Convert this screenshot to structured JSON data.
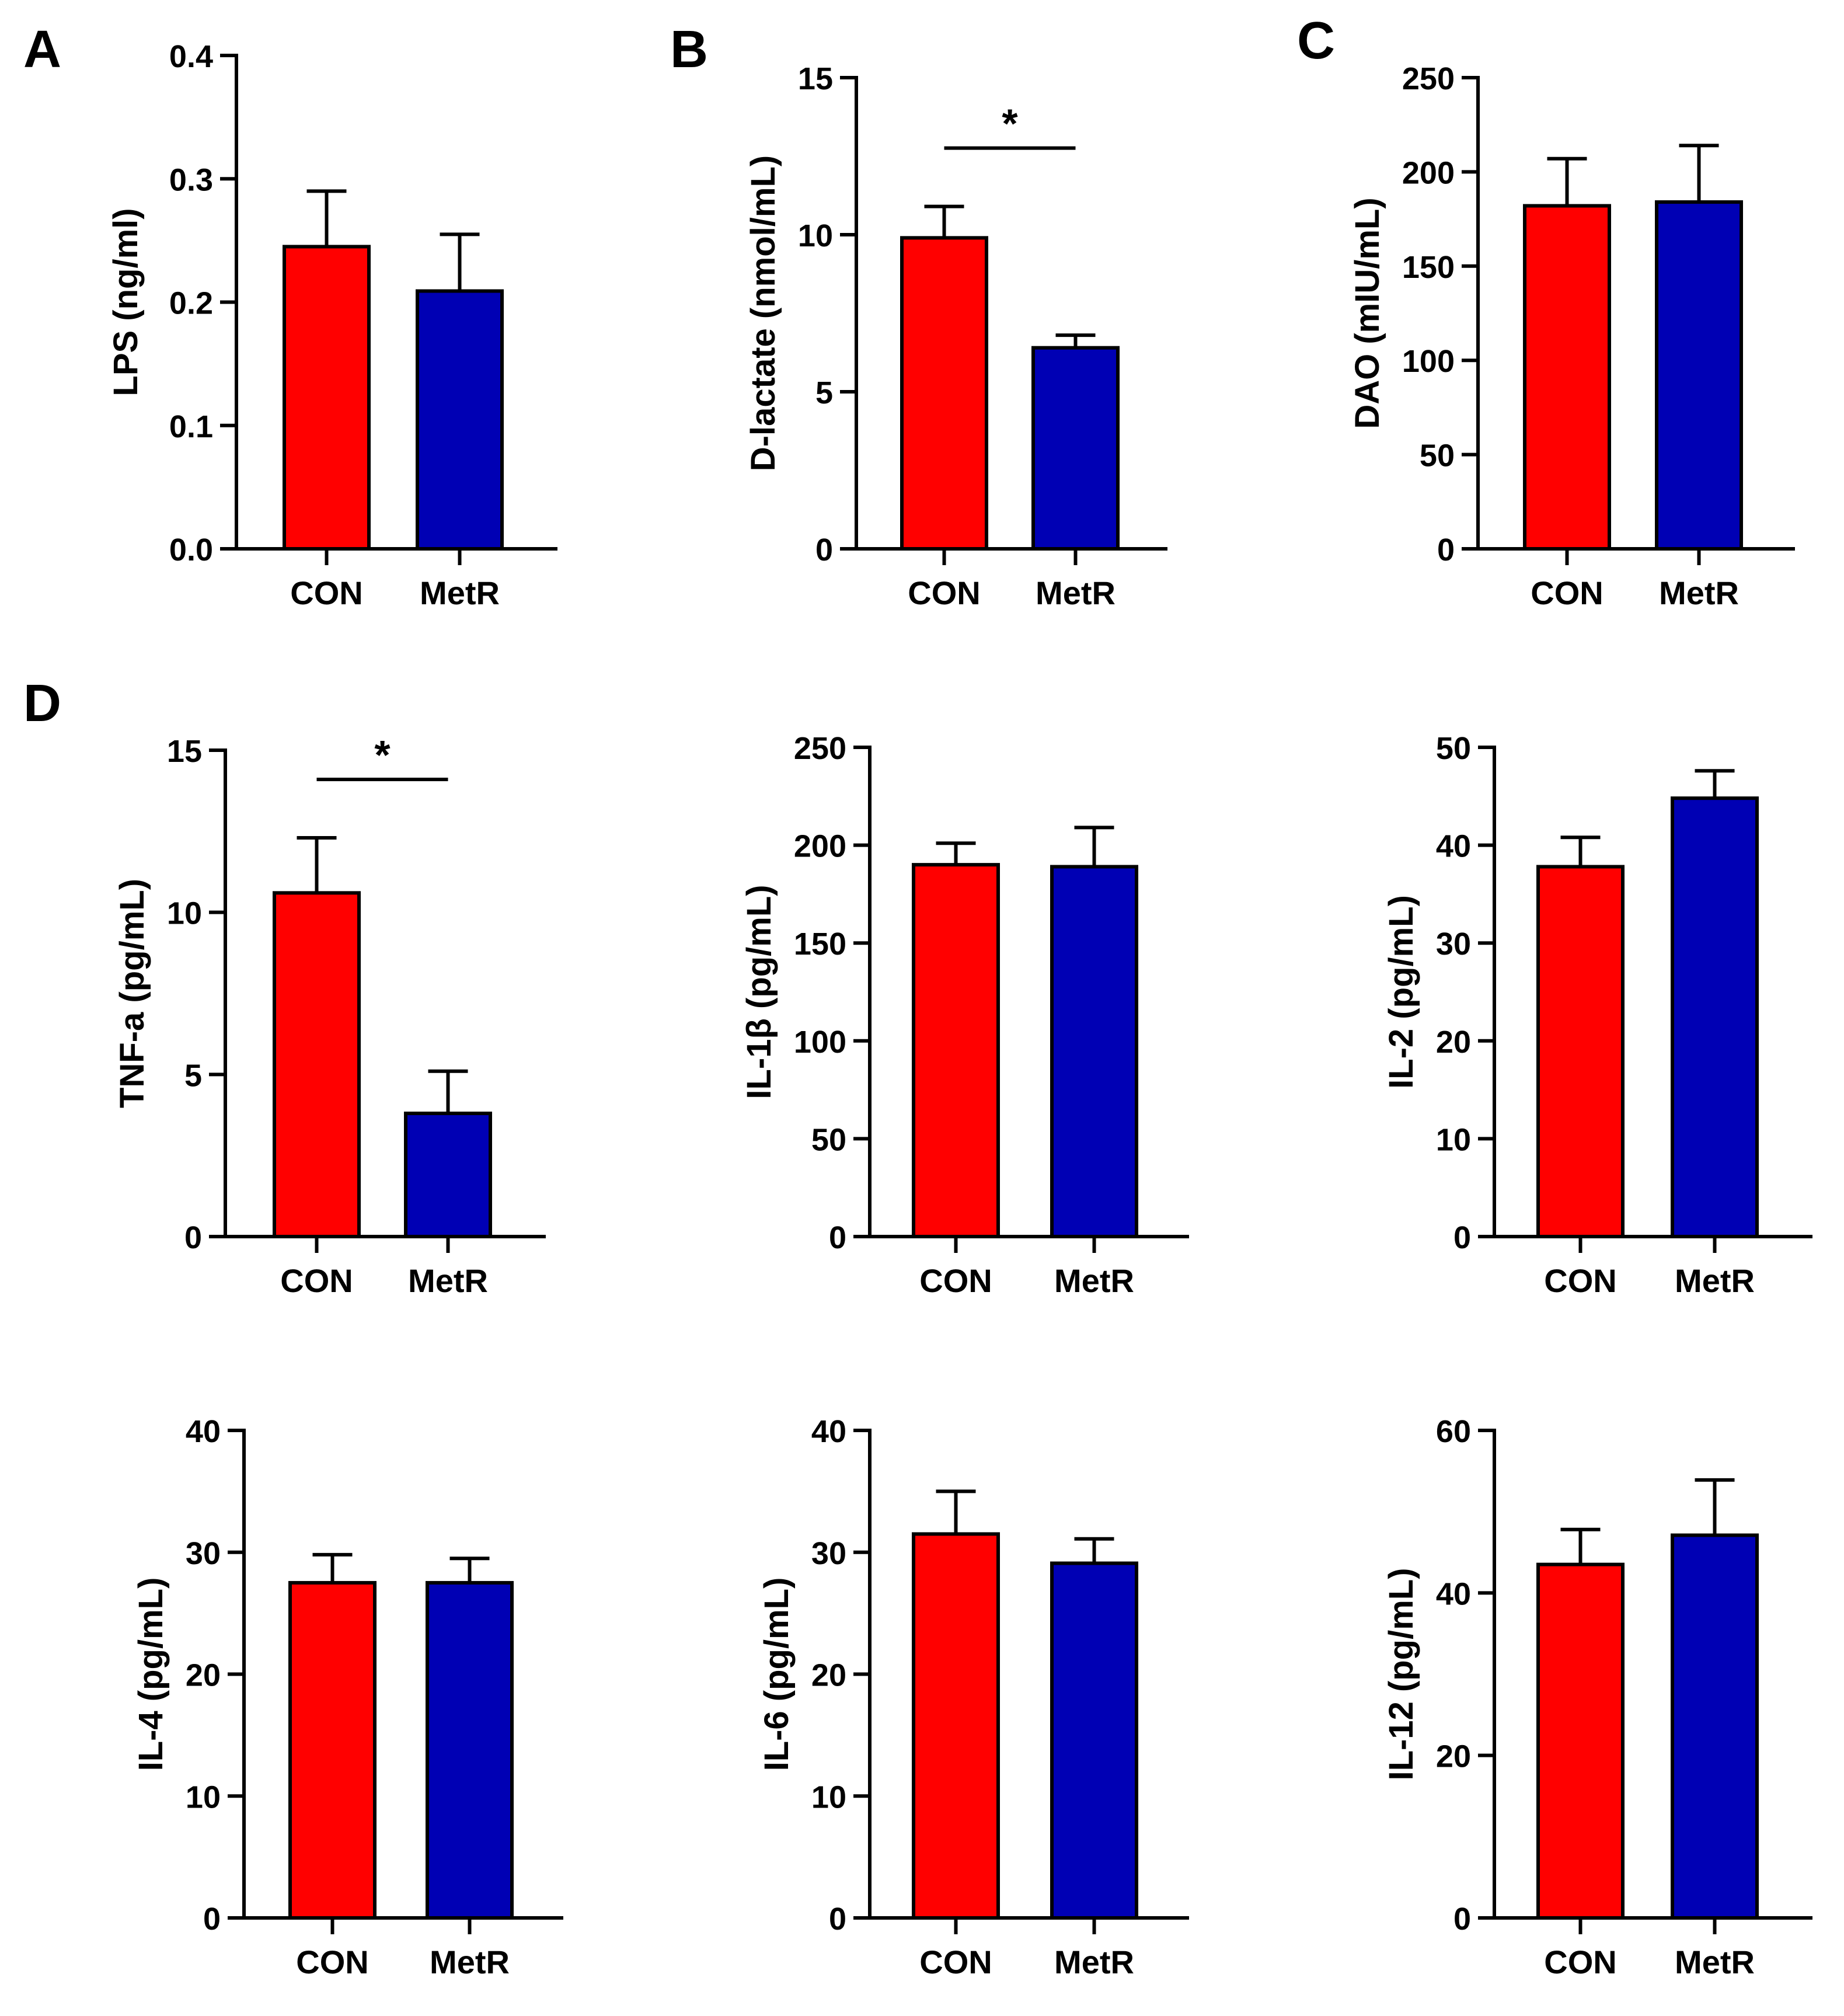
{
  "figure": {
    "panel_letters": [
      "A",
      "B",
      "C",
      "D"
    ]
  },
  "colors": {
    "CON": "#ff0000",
    "MetR": "#0000b4",
    "axis": "#000000"
  },
  "chart_data": [
    {
      "id": "lps",
      "type": "bar",
      "panel_label": "A",
      "ylabel": "LPS (ng/ml)",
      "ylim": [
        0,
        0.4
      ],
      "yticks": [
        0,
        0.1,
        0.2,
        0.3,
        0.4
      ],
      "ytick_labels": [
        "0.0",
        "0.1",
        "0.2",
        "0.3",
        "0.4"
      ],
      "categories": [
        "CON",
        "MetR"
      ],
      "values": [
        0.245,
        0.209
      ],
      "errors": [
        0.045,
        0.046
      ],
      "significance": null
    },
    {
      "id": "dlactate",
      "type": "bar",
      "panel_label": "B",
      "ylabel": "D-lactate (nmol/mL)",
      "ylim": [
        0,
        15
      ],
      "yticks": [
        0,
        5,
        10,
        15
      ],
      "ytick_labels": [
        "0",
        "5",
        "10",
        "15"
      ],
      "categories": [
        "CON",
        "MetR"
      ],
      "values": [
        9.9,
        6.4
      ],
      "errors": [
        1.0,
        0.4
      ],
      "significance": {
        "marker": "*",
        "between": [
          "CON",
          "MetR"
        ]
      }
    },
    {
      "id": "dao",
      "type": "bar",
      "panel_label": "C",
      "ylabel": "DAO (mIU/mL)",
      "ylim": [
        0,
        250
      ],
      "yticks": [
        0,
        50,
        100,
        150,
        200,
        250
      ],
      "ytick_labels": [
        "0",
        "50",
        "100",
        "150",
        "200",
        "250"
      ],
      "categories": [
        "CON",
        "MetR"
      ],
      "values": [
        182,
        184
      ],
      "errors": [
        25,
        30
      ],
      "significance": null
    },
    {
      "id": "tnfa",
      "type": "bar",
      "panel_label": "D",
      "ylabel": "TNF-a (pg/mL)",
      "ylim": [
        0,
        15
      ],
      "yticks": [
        0,
        5,
        10,
        15
      ],
      "ytick_labels": [
        "0",
        "5",
        "10",
        "15"
      ],
      "categories": [
        "CON",
        "MetR"
      ],
      "values": [
        10.6,
        3.8
      ],
      "errors": [
        1.7,
        1.3
      ],
      "significance": {
        "marker": "*",
        "between": [
          "CON",
          "MetR"
        ]
      }
    },
    {
      "id": "il1b",
      "type": "bar",
      "panel_label": null,
      "ylabel": "IL-1β (pg/mL)",
      "ylim": [
        0,
        250
      ],
      "yticks": [
        0,
        50,
        100,
        150,
        200,
        250
      ],
      "ytick_labels": [
        "0",
        "50",
        "100",
        "150",
        "200",
        "250"
      ],
      "categories": [
        "CON",
        "MetR"
      ],
      "values": [
        190,
        189
      ],
      "errors": [
        11,
        20
      ],
      "significance": null
    },
    {
      "id": "il2",
      "type": "bar",
      "panel_label": null,
      "ylabel": "IL-2 (pg/mL)",
      "ylim": [
        0,
        50
      ],
      "yticks": [
        0,
        10,
        20,
        30,
        40,
        50
      ],
      "ytick_labels": [
        "0",
        "10",
        "20",
        "30",
        "40",
        "50"
      ],
      "categories": [
        "CON",
        "MetR"
      ],
      "values": [
        37.8,
        44.8
      ],
      "errors": [
        3.0,
        2.8
      ],
      "significance": null
    },
    {
      "id": "il4",
      "type": "bar",
      "panel_label": null,
      "ylabel": "IL-4 (pg/mL)",
      "ylim": [
        0,
        40
      ],
      "yticks": [
        0,
        10,
        20,
        30,
        40
      ],
      "ytick_labels": [
        "0",
        "10",
        "20",
        "30",
        "40"
      ],
      "categories": [
        "CON",
        "MetR"
      ],
      "values": [
        27.5,
        27.5
      ],
      "errors": [
        2.3,
        2.0
      ],
      "significance": null
    },
    {
      "id": "il6",
      "type": "bar",
      "panel_label": null,
      "ylabel": "IL-6 (pg/mL)",
      "ylim": [
        0,
        40
      ],
      "yticks": [
        0,
        10,
        20,
        30,
        40
      ],
      "ytick_labels": [
        "0",
        "10",
        "20",
        "30",
        "40"
      ],
      "categories": [
        "CON",
        "MetR"
      ],
      "values": [
        31.5,
        29.1
      ],
      "errors": [
        3.5,
        2.0
      ],
      "significance": null
    },
    {
      "id": "il12",
      "type": "bar",
      "panel_label": null,
      "ylabel": "IL-12 (pg/mL)",
      "ylim": [
        0,
        60
      ],
      "yticks": [
        0,
        20,
        40,
        60
      ],
      "ytick_labels": [
        "0",
        "20",
        "40",
        "60"
      ],
      "categories": [
        "CON",
        "MetR"
      ],
      "values": [
        43.5,
        47.1
      ],
      "errors": [
        4.3,
        6.8
      ],
      "significance": null
    }
  ]
}
